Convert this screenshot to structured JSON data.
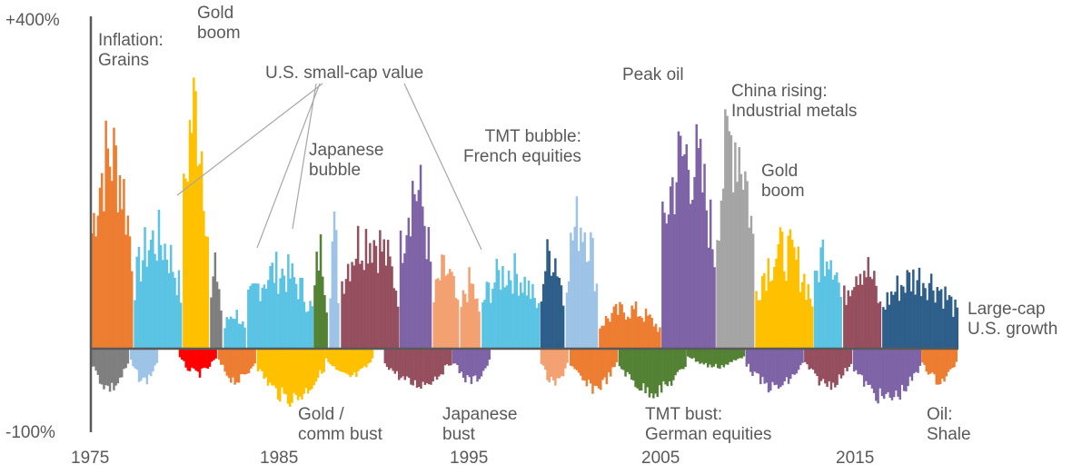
{
  "chart_data": {
    "type": "bar",
    "title": "",
    "xlabel": "",
    "ylabel": "",
    "ylim": [
      -100,
      400
    ],
    "xlim": [
      1975,
      2019.4
    ],
    "y_tick_labels": [
      "+400%",
      "-100%"
    ],
    "x_tick_labels": [
      "1975",
      "1985",
      "1995",
      "2005",
      "2015"
    ],
    "x_tick_values": [
      1975,
      1985,
      1995,
      2005,
      2015
    ],
    "grid": false,
    "legend": "none",
    "colors": {
      "orange": "#ED7D31",
      "gray": "#7F7F7F",
      "light_blue": "#9DC3E6",
      "cyan": "#5BC3E3",
      "green": "#548235",
      "gold": "#FFC000",
      "red": "#FF0000",
      "maroon": "#954F5E",
      "purple": "#7E64A6",
      "salmon": "#F4A172",
      "navy": "#2E5E8A",
      "silver": "#A5A5A5",
      "axis": "#595959"
    },
    "segments": [
      {
        "start": 1975.0,
        "end": 1977.2,
        "color": "orange",
        "peak": 300,
        "trough": -55,
        "label": "Inflation: Grains"
      },
      {
        "start": 1977.2,
        "end": 1979.7,
        "color": "cyan",
        "peak": 170,
        "trough": -45,
        "label": "U.S. small-cap value"
      },
      {
        "start": 1979.7,
        "end": 1981.1,
        "color": "gold",
        "peak": 370,
        "trough": -25,
        "label": "Gold boom"
      },
      {
        "start": 1981.1,
        "end": 1981.8,
        "color": "gray",
        "peak": 120,
        "trough": -40
      },
      {
        "start": 1981.8,
        "end": 1983.0,
        "color": "cyan",
        "peak": 55,
        "trough": -35
      },
      {
        "start": 1983.0,
        "end": 1986.4,
        "color": "cyan",
        "peak": 120,
        "trough": -70,
        "label": "U.S. small-cap value"
      },
      {
        "start": 1986.4,
        "end": 1987.2,
        "color": "green",
        "peak": 150,
        "trough": -40
      },
      {
        "start": 1987.2,
        "end": 1987.8,
        "color": "light_blue",
        "peak": 180,
        "trough": -30
      },
      {
        "start": 1987.8,
        "end": 1990.8,
        "color": "maroon",
        "peak": 175,
        "trough": -20,
        "label": "Japanese bubble"
      },
      {
        "start": 1990.8,
        "end": 1992.5,
        "color": "purple",
        "peak": 250,
        "trough": -30
      },
      {
        "start": 1992.5,
        "end": 1993.9,
        "color": "salmon",
        "peak": 120,
        "trough": -40
      },
      {
        "start": 1993.9,
        "end": 1995.0,
        "color": "salmon",
        "peak": 100,
        "trough": -50
      },
      {
        "start": 1995.0,
        "end": 1998.0,
        "color": "cyan",
        "peak": 120,
        "trough": -55,
        "label": "U.S. small-cap value"
      },
      {
        "start": 1998.0,
        "end": 1999.3,
        "color": "navy",
        "peak": 150,
        "trough": -20
      },
      {
        "start": 1999.3,
        "end": 2001.0,
        "color": "light_blue",
        "peak": 200,
        "trough": -20,
        "label": "TMT bubble: French equities"
      },
      {
        "start": 2001.0,
        "end": 2004.2,
        "color": "orange",
        "peak": 60,
        "trough": -55
      },
      {
        "start": 2004.2,
        "end": 2007.0,
        "color": "purple",
        "peak": 300,
        "trough": -20,
        "label": "Peak oil"
      },
      {
        "start": 2007.0,
        "end": 2009.0,
        "color": "silver",
        "peak": 330,
        "trough": -15,
        "label": "China rising: Industrial metals"
      },
      {
        "start": 2009.0,
        "end": 2012.0,
        "color": "gold",
        "peak": 150,
        "trough": -40,
        "label": "Gold boom"
      },
      {
        "start": 2012.0,
        "end": 2013.5,
        "color": "cyan",
        "peak": 160,
        "trough": -30
      },
      {
        "start": 2013.5,
        "end": 2015.5,
        "color": "maroon",
        "peak": 130,
        "trough": -50
      },
      {
        "start": 2015.5,
        "end": 2019.4,
        "color": "navy",
        "peak": 110,
        "trough": -60,
        "label": "Large-cap U.S. growth"
      }
    ],
    "downside_segments": [
      {
        "start": 1975.0,
        "end": 1977.0,
        "color": "gray",
        "trough": -55
      },
      {
        "start": 1977.0,
        "end": 1978.5,
        "color": "light_blue",
        "trough": -45
      },
      {
        "start": 1979.5,
        "end": 1981.5,
        "color": "red",
        "trough": -35
      },
      {
        "start": 1981.5,
        "end": 1983.5,
        "color": "orange",
        "trough": -45
      },
      {
        "start": 1983.5,
        "end": 1987.0,
        "color": "gold",
        "trough": -70,
        "label": "Gold / comm bust"
      },
      {
        "start": 1987.0,
        "end": 1989.5,
        "color": "gold",
        "trough": -40
      },
      {
        "start": 1990.0,
        "end": 1993.5,
        "color": "maroon",
        "trough": -50,
        "label": "Japanese bust"
      },
      {
        "start": 1993.5,
        "end": 1995.5,
        "color": "purple",
        "trough": -45
      },
      {
        "start": 1998.0,
        "end": 1999.5,
        "color": "salmon",
        "trough": -50
      },
      {
        "start": 1999.5,
        "end": 2002.0,
        "color": "orange",
        "trough": -55
      },
      {
        "start": 2002.0,
        "end": 2005.5,
        "color": "green",
        "trough": -60,
        "label": "TMT bust: German equities"
      },
      {
        "start": 2005.5,
        "end": 2008.5,
        "color": "green",
        "trough": -25
      },
      {
        "start": 2008.5,
        "end": 2011.5,
        "color": "purple",
        "trough": -55
      },
      {
        "start": 2011.5,
        "end": 2014.0,
        "color": "maroon",
        "trough": -50
      },
      {
        "start": 2014.0,
        "end": 2017.5,
        "color": "purple",
        "trough": -70
      },
      {
        "start": 2017.5,
        "end": 2019.4,
        "color": "orange",
        "trough": -45,
        "label": "Oil: Shale"
      }
    ]
  },
  "annotations": {
    "inflation_grains": "Inflation:\nGrains",
    "gold_boom_1": "Gold\nboom",
    "small_cap_value": "U.S. small-cap value",
    "japanese_bubble": "Japanese\nbubble",
    "tmt_bubble": "TMT bubble:\nFrench equities",
    "peak_oil": "Peak oil",
    "china_rising": "China rising:\nIndustrial metals",
    "gold_boom_2": "Gold\nboom",
    "large_cap_growth": "Large-cap\nU.S. growth",
    "gold_comm_bust": "Gold /\ncomm bust",
    "japanese_bust": "Japanese\nbust",
    "tmt_bust": "TMT bust:\nGerman equities",
    "oil_shale": "Oil:\nShale"
  }
}
